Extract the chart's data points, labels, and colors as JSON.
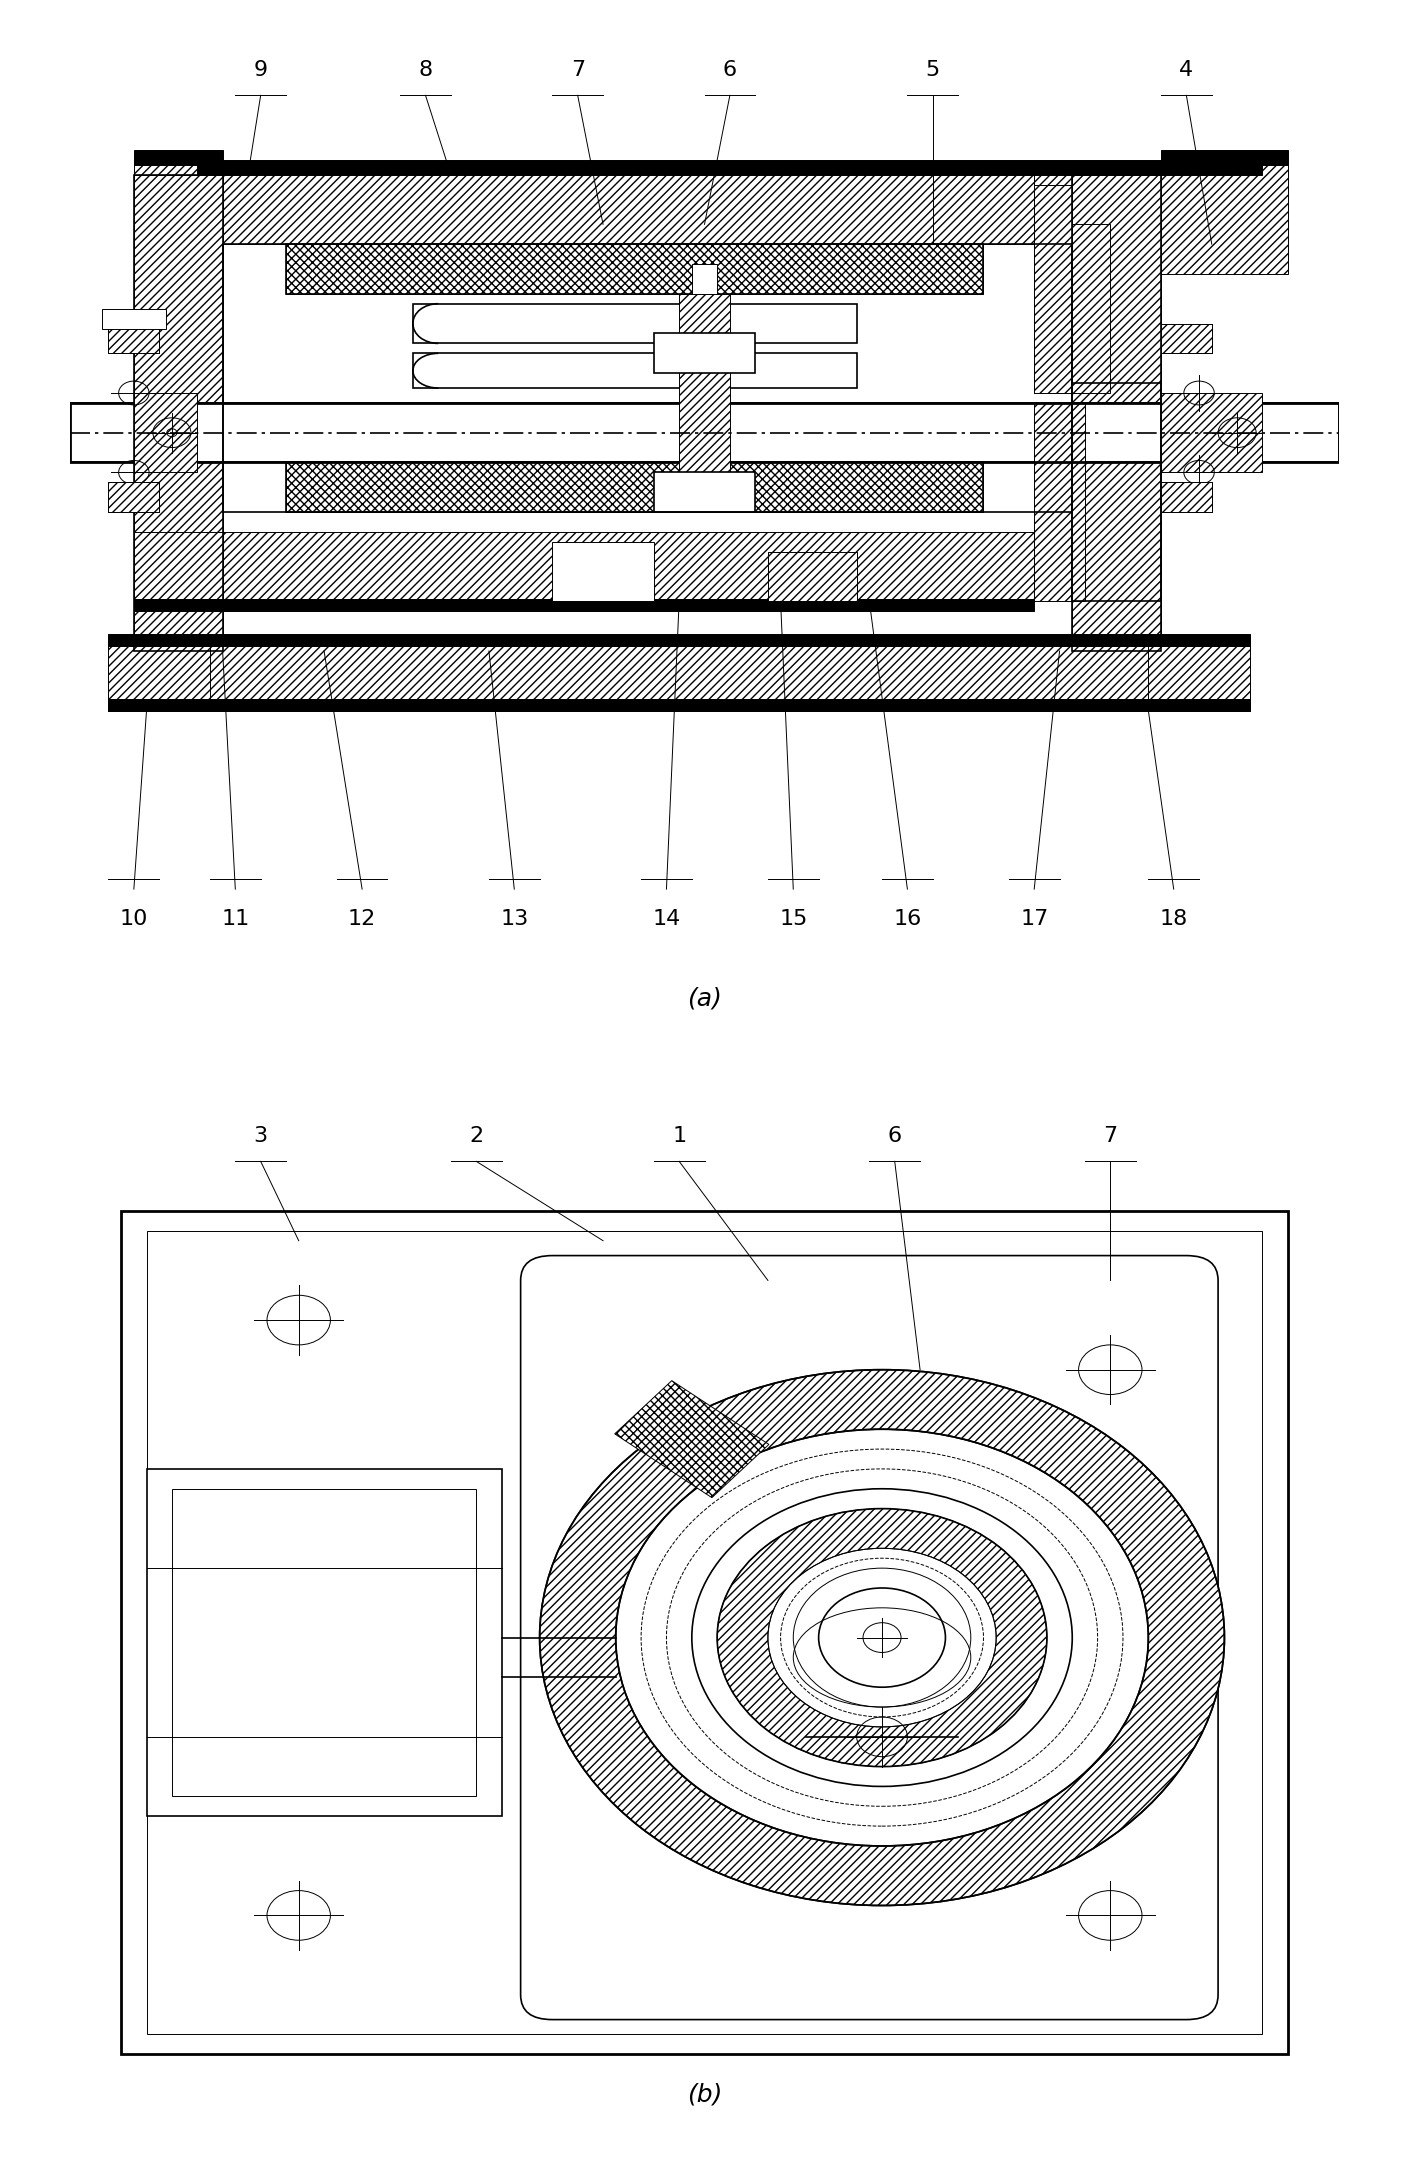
{
  "title_a": "(a)",
  "title_b": "(b)",
  "bg_color": "#ffffff",
  "label_fontsize": 16,
  "caption_fontsize": 18,
  "figsize": [
    14.09,
    21.57
  ],
  "dpi": 100
}
